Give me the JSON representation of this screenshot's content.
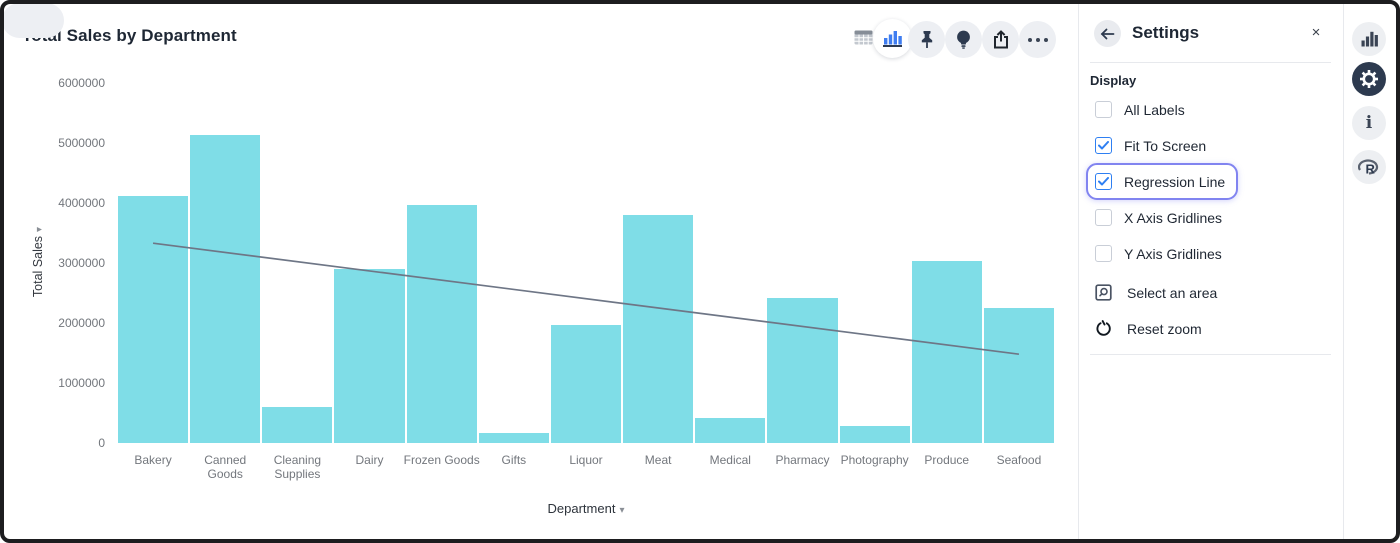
{
  "chart_data": {
    "type": "bar",
    "title": "Total Sales by Department",
    "xlabel": "Department",
    "ylabel": "Total Sales",
    "categories": [
      "Bakery",
      "Canned Goods",
      "Cleaning Supplies",
      "Dairy",
      "Frozen Goods",
      "Gifts",
      "Liquor",
      "Meat",
      "Medical",
      "Pharmacy",
      "Photography",
      "Produce",
      "Seafood"
    ],
    "values": [
      4120000,
      5130000,
      600000,
      2900000,
      3970000,
      160000,
      1970000,
      3800000,
      420000,
      2420000,
      290000,
      3030000,
      2250000
    ],
    "ylim": [
      0,
      6000000
    ],
    "yticks": [
      0,
      1000000,
      2000000,
      3000000,
      4000000,
      5000000,
      6000000
    ],
    "grid": false,
    "legend": false,
    "bar_color": "#7fdde7",
    "regression_line": {
      "show": true,
      "color": "#6e7686",
      "start_value": 3330000,
      "end_value": 1480000
    }
  },
  "header": {
    "title": "Total Sales by Department"
  },
  "toolbar": {
    "view_toggle": [
      {
        "name": "table-view",
        "active": false
      },
      {
        "name": "chart-view",
        "active": true
      }
    ],
    "buttons": [
      "pin",
      "lightbulb",
      "share",
      "more"
    ]
  },
  "axes": {
    "y_label": "Total Sales",
    "x_label": "Department",
    "caret": "▾"
  },
  "settings_panel": {
    "title": "Settings",
    "close_label": "×",
    "section_label": "Display",
    "checkboxes": [
      {
        "label": "All Labels",
        "checked": false,
        "highlighted": false
      },
      {
        "label": "Fit To Screen",
        "checked": true,
        "highlighted": false
      },
      {
        "label": "Regression Line",
        "checked": true,
        "highlighted": true
      },
      {
        "label": "X Axis Gridlines",
        "checked": false,
        "highlighted": false
      },
      {
        "label": "Y Axis Gridlines",
        "checked": false,
        "highlighted": false
      }
    ],
    "actions": [
      {
        "label": "Select an area",
        "icon": "select-area-icon"
      },
      {
        "label": "Reset zoom",
        "icon": "reset-zoom-icon"
      }
    ],
    "accent_colors": {
      "checkbox_blue": "#2e7ff2",
      "highlight_ring": "#8184f0"
    }
  },
  "right_toolbar": {
    "icons": [
      {
        "name": "chart-icon",
        "active": false
      },
      {
        "name": "settings-gear-icon",
        "active": true
      },
      {
        "name": "info-icon",
        "active": false
      },
      {
        "name": "r-logo-icon",
        "active": false
      }
    ]
  }
}
